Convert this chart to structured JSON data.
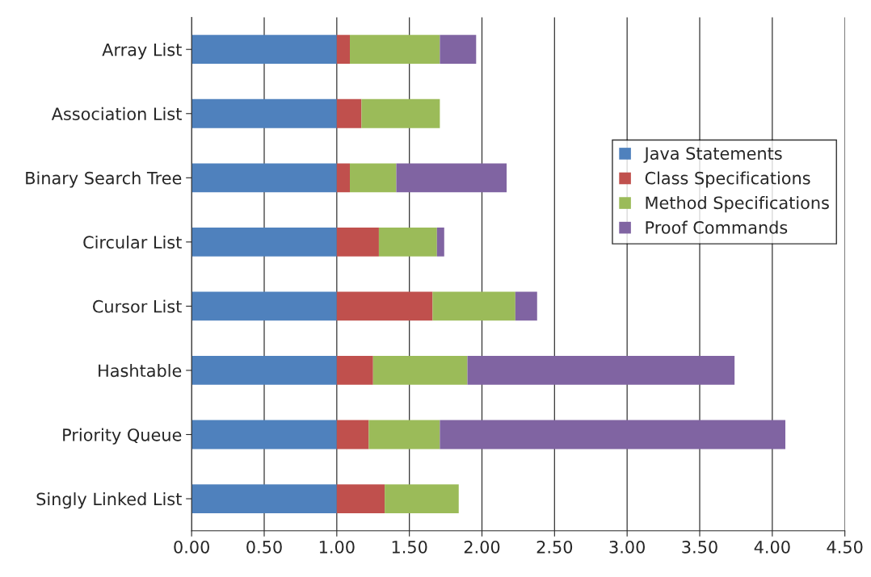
{
  "chart_data": {
    "type": "bar",
    "orientation": "horizontal",
    "stacked": true,
    "categories": [
      "Array List",
      "Association List",
      "Binary Search Tree",
      "Circular List",
      "Cursor List",
      "Hashtable",
      "Priority Queue",
      "Singly Linked List"
    ],
    "series": [
      {
        "name": "Java Statements",
        "color": "#4f81bd",
        "values": [
          1.0,
          1.0,
          1.0,
          1.0,
          1.0,
          1.0,
          1.0,
          1.0
        ]
      },
      {
        "name": "Class Specifications",
        "color": "#c0504d",
        "values": [
          0.09,
          0.17,
          0.09,
          0.29,
          0.66,
          0.25,
          0.22,
          0.33
        ]
      },
      {
        "name": "Method Specifications",
        "color": "#9bbb59",
        "values": [
          0.62,
          0.54,
          0.32,
          0.4,
          0.57,
          0.65,
          0.49,
          0.51
        ]
      },
      {
        "name": "Proof Commands",
        "color": "#8064a2",
        "values": [
          0.25,
          null,
          0.76,
          0.05,
          0.15,
          1.84,
          2.38,
          null
        ]
      }
    ],
    "xlim": [
      0,
      4.5
    ],
    "xticks": [
      {
        "value": 0,
        "label": "0.00"
      },
      {
        "value": 0.5,
        "label": "0.50"
      },
      {
        "value": 1,
        "label": "1.00"
      },
      {
        "value": 1.5,
        "label": "1.50"
      },
      {
        "value": 2,
        "label": "2.00"
      },
      {
        "value": 2.5,
        "label": "2.50"
      },
      {
        "value": 3,
        "label": "3.00"
      },
      {
        "value": 3.5,
        "label": "3.50"
      },
      {
        "value": 4,
        "label": "4.00"
      },
      {
        "value": 4.5,
        "label": "4.50"
      }
    ],
    "grid": "x",
    "legend": "right"
  }
}
